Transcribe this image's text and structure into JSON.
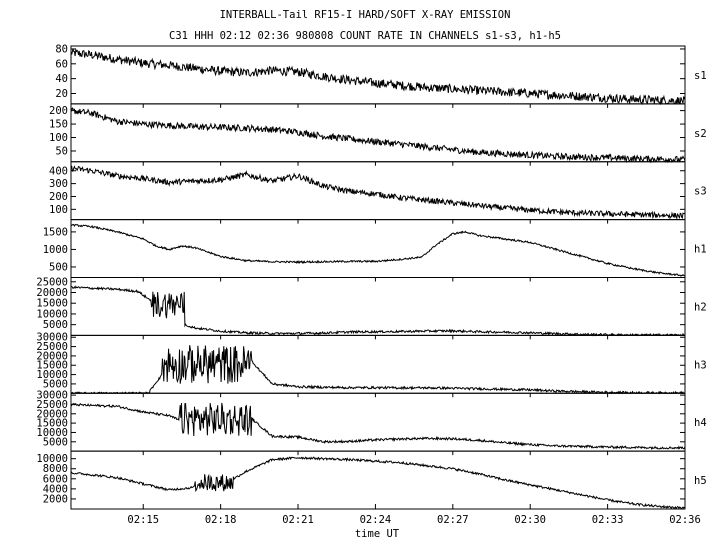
{
  "title": "INTERBALL-Tail RF15-I HARD/SOFT X-RAY EMISSION",
  "subtitle": "C31 HHH 02:12 02:36 980808  COUNT RATE IN CHANNELS s1-s3, h1-h5",
  "chart_data": {
    "type": "line",
    "title": "INTERBALL-Tail RF15-I HARD/SOFT X-RAY EMISSION",
    "subtitle": "C31 HHH 02:12 02:36 980808  COUNT RATE IN CHANNELS s1-s3, h1-h5",
    "xlabel": "time UT",
    "x_range_minutes": [
      12.2,
      36.0
    ],
    "x_ticks": [
      {
        "t": 15,
        "label": "02:15"
      },
      {
        "t": 18,
        "label": "02:18"
      },
      {
        "t": 21,
        "label": "02:21"
      },
      {
        "t": 24,
        "label": "02:24"
      },
      {
        "t": 27,
        "label": "02:27"
      },
      {
        "t": 30,
        "label": "02:30"
      },
      {
        "t": 33,
        "label": "02:33"
      },
      {
        "t": 36,
        "label": "02:36"
      }
    ],
    "grid": false,
    "panels": [
      {
        "channel": "s1",
        "ylim": [
          6,
          84
        ],
        "yticks": [
          20,
          40,
          60,
          80
        ],
        "noise": 6,
        "bursts": [],
        "points": [
          [
            12.2,
            75
          ],
          [
            13,
            72
          ],
          [
            14,
            66
          ],
          [
            15,
            61
          ],
          [
            16,
            58
          ],
          [
            17,
            54
          ],
          [
            18,
            50
          ],
          [
            19,
            48
          ],
          [
            20,
            51
          ],
          [
            21,
            49
          ],
          [
            22,
            43
          ],
          [
            23,
            38
          ],
          [
            24,
            34
          ],
          [
            25,
            31
          ],
          [
            26,
            28
          ],
          [
            27,
            26
          ],
          [
            28,
            24
          ],
          [
            29,
            22
          ],
          [
            30,
            20
          ],
          [
            31,
            18
          ],
          [
            32,
            16
          ],
          [
            33,
            14
          ],
          [
            34,
            12
          ],
          [
            35,
            11
          ],
          [
            36,
            10
          ]
        ]
      },
      {
        "channel": "s2",
        "ylim": [
          10,
          225
        ],
        "yticks": [
          50,
          100,
          150,
          200
        ],
        "noise": 12,
        "bursts": [],
        "points": [
          [
            12.2,
            200
          ],
          [
            13,
            190
          ],
          [
            14,
            160
          ],
          [
            15,
            150
          ],
          [
            16,
            145
          ],
          [
            17,
            140
          ],
          [
            18,
            138
          ],
          [
            19,
            135
          ],
          [
            20,
            130
          ],
          [
            21,
            120
          ],
          [
            22,
            105
          ],
          [
            23,
            95
          ],
          [
            24,
            85
          ],
          [
            25,
            75
          ],
          [
            26,
            65
          ],
          [
            27,
            55
          ],
          [
            28,
            45
          ],
          [
            29,
            40
          ],
          [
            30,
            35
          ],
          [
            31,
            30
          ],
          [
            32,
            27
          ],
          [
            33,
            25
          ],
          [
            34,
            22
          ],
          [
            35,
            20
          ],
          [
            36,
            18
          ]
        ]
      },
      {
        "channel": "s3",
        "ylim": [
          20,
          470
        ],
        "yticks": [
          100,
          200,
          300,
          400
        ],
        "noise": 22,
        "bursts": [],
        "points": [
          [
            12.2,
            420
          ],
          [
            13,
            400
          ],
          [
            14,
            360
          ],
          [
            15,
            340
          ],
          [
            16,
            310
          ],
          [
            17,
            320
          ],
          [
            18,
            330
          ],
          [
            19,
            370
          ],
          [
            20,
            320
          ],
          [
            21,
            360
          ],
          [
            22,
            280
          ],
          [
            23,
            240
          ],
          [
            24,
            220
          ],
          [
            25,
            190
          ],
          [
            26,
            170
          ],
          [
            27,
            150
          ],
          [
            28,
            130
          ],
          [
            29,
            110
          ],
          [
            30,
            95
          ],
          [
            31,
            80
          ],
          [
            32,
            70
          ],
          [
            33,
            65
          ],
          [
            34,
            60
          ],
          [
            35,
            55
          ],
          [
            36,
            50
          ]
        ]
      },
      {
        "channel": "h1",
        "ylim": [
          200,
          1850
        ],
        "yticks": [
          500,
          1000,
          1500
        ],
        "noise": 25,
        "bursts": [],
        "points": [
          [
            12.2,
            1700
          ],
          [
            13,
            1650
          ],
          [
            14,
            1500
          ],
          [
            15,
            1300
          ],
          [
            15.5,
            1100
          ],
          [
            16,
            1000
          ],
          [
            16.5,
            1100
          ],
          [
            17,
            1050
          ],
          [
            18,
            800
          ],
          [
            19,
            680
          ],
          [
            20,
            650
          ],
          [
            21,
            640
          ],
          [
            22,
            650
          ],
          [
            23,
            660
          ],
          [
            24,
            660
          ],
          [
            25,
            720
          ],
          [
            25.8,
            780
          ],
          [
            26.3,
            1100
          ],
          [
            27,
            1450
          ],
          [
            27.5,
            1500
          ],
          [
            28,
            1400
          ],
          [
            29,
            1300
          ],
          [
            30,
            1200
          ],
          [
            31,
            1000
          ],
          [
            32,
            800
          ],
          [
            33,
            600
          ],
          [
            34,
            450
          ],
          [
            35,
            330
          ],
          [
            36,
            250
          ]
        ]
      },
      {
        "channel": "h2",
        "ylim": [
          0,
          27000
        ],
        "yticks": [
          5000,
          10000,
          15000,
          20000,
          25000
        ],
        "noise": 500,
        "bursts": [
          [
            15.3,
            16.6,
            8000,
            21000
          ]
        ],
        "points": [
          [
            12.2,
            22500
          ],
          [
            13,
            22000
          ],
          [
            14,
            21500
          ],
          [
            14.8,
            20500
          ],
          [
            15.2,
            17000
          ],
          [
            15.6,
            14500
          ],
          [
            16.2,
            13000
          ],
          [
            16.6,
            5000
          ],
          [
            17,
            3500
          ],
          [
            18,
            2000
          ],
          [
            19,
            1200
          ],
          [
            20,
            900
          ],
          [
            21,
            900
          ],
          [
            22,
            1100
          ],
          [
            23,
            1600
          ],
          [
            24,
            1700
          ],
          [
            25,
            1800
          ],
          [
            26,
            2000
          ],
          [
            27,
            2100
          ],
          [
            28,
            1700
          ],
          [
            29,
            1500
          ],
          [
            30,
            1200
          ],
          [
            31,
            800
          ],
          [
            32,
            500
          ],
          [
            33,
            300
          ],
          [
            34,
            200
          ],
          [
            35,
            200
          ],
          [
            36,
            200
          ]
        ]
      },
      {
        "channel": "h3",
        "ylim": [
          0,
          31000
        ],
        "yticks": [
          5000,
          10000,
          15000,
          20000,
          25000,
          30000
        ],
        "noise": 600,
        "bursts": [
          [
            15.7,
            19.2,
            5000,
            26000
          ]
        ],
        "points": [
          [
            12.2,
            0
          ],
          [
            15.2,
            0
          ],
          [
            15.5,
            6000
          ],
          [
            16,
            14000
          ],
          [
            17,
            15000
          ],
          [
            18,
            17000
          ],
          [
            19,
            21000
          ],
          [
            19.4,
            14000
          ],
          [
            20,
            5000
          ],
          [
            21,
            3500
          ],
          [
            22,
            3200
          ],
          [
            23,
            3000
          ],
          [
            24,
            3000
          ],
          [
            25,
            2900
          ],
          [
            26,
            2900
          ],
          [
            27,
            2700
          ],
          [
            28,
            2400
          ],
          [
            29,
            2100
          ],
          [
            30,
            1800
          ],
          [
            31,
            1200
          ],
          [
            32,
            800
          ],
          [
            33,
            500
          ],
          [
            34,
            300
          ],
          [
            35,
            200
          ],
          [
            36,
            200
          ]
        ]
      },
      {
        "channel": "h4",
        "ylim": [
          0,
          31000
        ],
        "yticks": [
          5000,
          10000,
          15000,
          20000,
          25000,
          30000
        ],
        "noise": 600,
        "bursts": [
          [
            16.4,
            19.2,
            8000,
            26000
          ]
        ],
        "points": [
          [
            12.2,
            25000
          ],
          [
            13,
            24500
          ],
          [
            14,
            24000
          ],
          [
            15,
            21000
          ],
          [
            16,
            19000
          ],
          [
            16.5,
            16000
          ],
          [
            17,
            17000
          ],
          [
            18,
            18000
          ],
          [
            19,
            20000
          ],
          [
            19.4,
            15000
          ],
          [
            20,
            8000
          ],
          [
            21,
            7500
          ],
          [
            22,
            5000
          ],
          [
            23,
            5200
          ],
          [
            24,
            6000
          ],
          [
            25,
            6500
          ],
          [
            26,
            6800
          ],
          [
            27,
            6600
          ],
          [
            28,
            5800
          ],
          [
            29,
            4500
          ],
          [
            30,
            3500
          ],
          [
            31,
            2800
          ],
          [
            32,
            2500
          ],
          [
            33,
            2200
          ],
          [
            34,
            2000
          ],
          [
            35,
            1800
          ],
          [
            36,
            1800
          ]
        ]
      },
      {
        "channel": "h5",
        "ylim": [
          0,
          11500
        ],
        "yticks": [
          2000,
          4000,
          6000,
          8000,
          10000
        ],
        "noise": 220,
        "bursts": [
          [
            17,
            18.5,
            3500,
            7000
          ]
        ],
        "points": [
          [
            12.2,
            7200
          ],
          [
            13,
            6800
          ],
          [
            14,
            6200
          ],
          [
            15,
            5000
          ],
          [
            16,
            3800
          ],
          [
            16.8,
            4200
          ],
          [
            17.5,
            5000
          ],
          [
            18.5,
            6000
          ],
          [
            19,
            7500
          ],
          [
            20,
            9800
          ],
          [
            21,
            10200
          ],
          [
            22,
            10000
          ],
          [
            23,
            9800
          ],
          [
            24,
            9500
          ],
          [
            25,
            9200
          ],
          [
            26,
            8600
          ],
          [
            27,
            8000
          ],
          [
            28,
            7000
          ],
          [
            29,
            5800
          ],
          [
            30,
            4800
          ],
          [
            31,
            3800
          ],
          [
            32,
            2800
          ],
          [
            33,
            1800
          ],
          [
            34,
            1000
          ],
          [
            35,
            500
          ],
          [
            36,
            200
          ]
        ]
      }
    ]
  }
}
